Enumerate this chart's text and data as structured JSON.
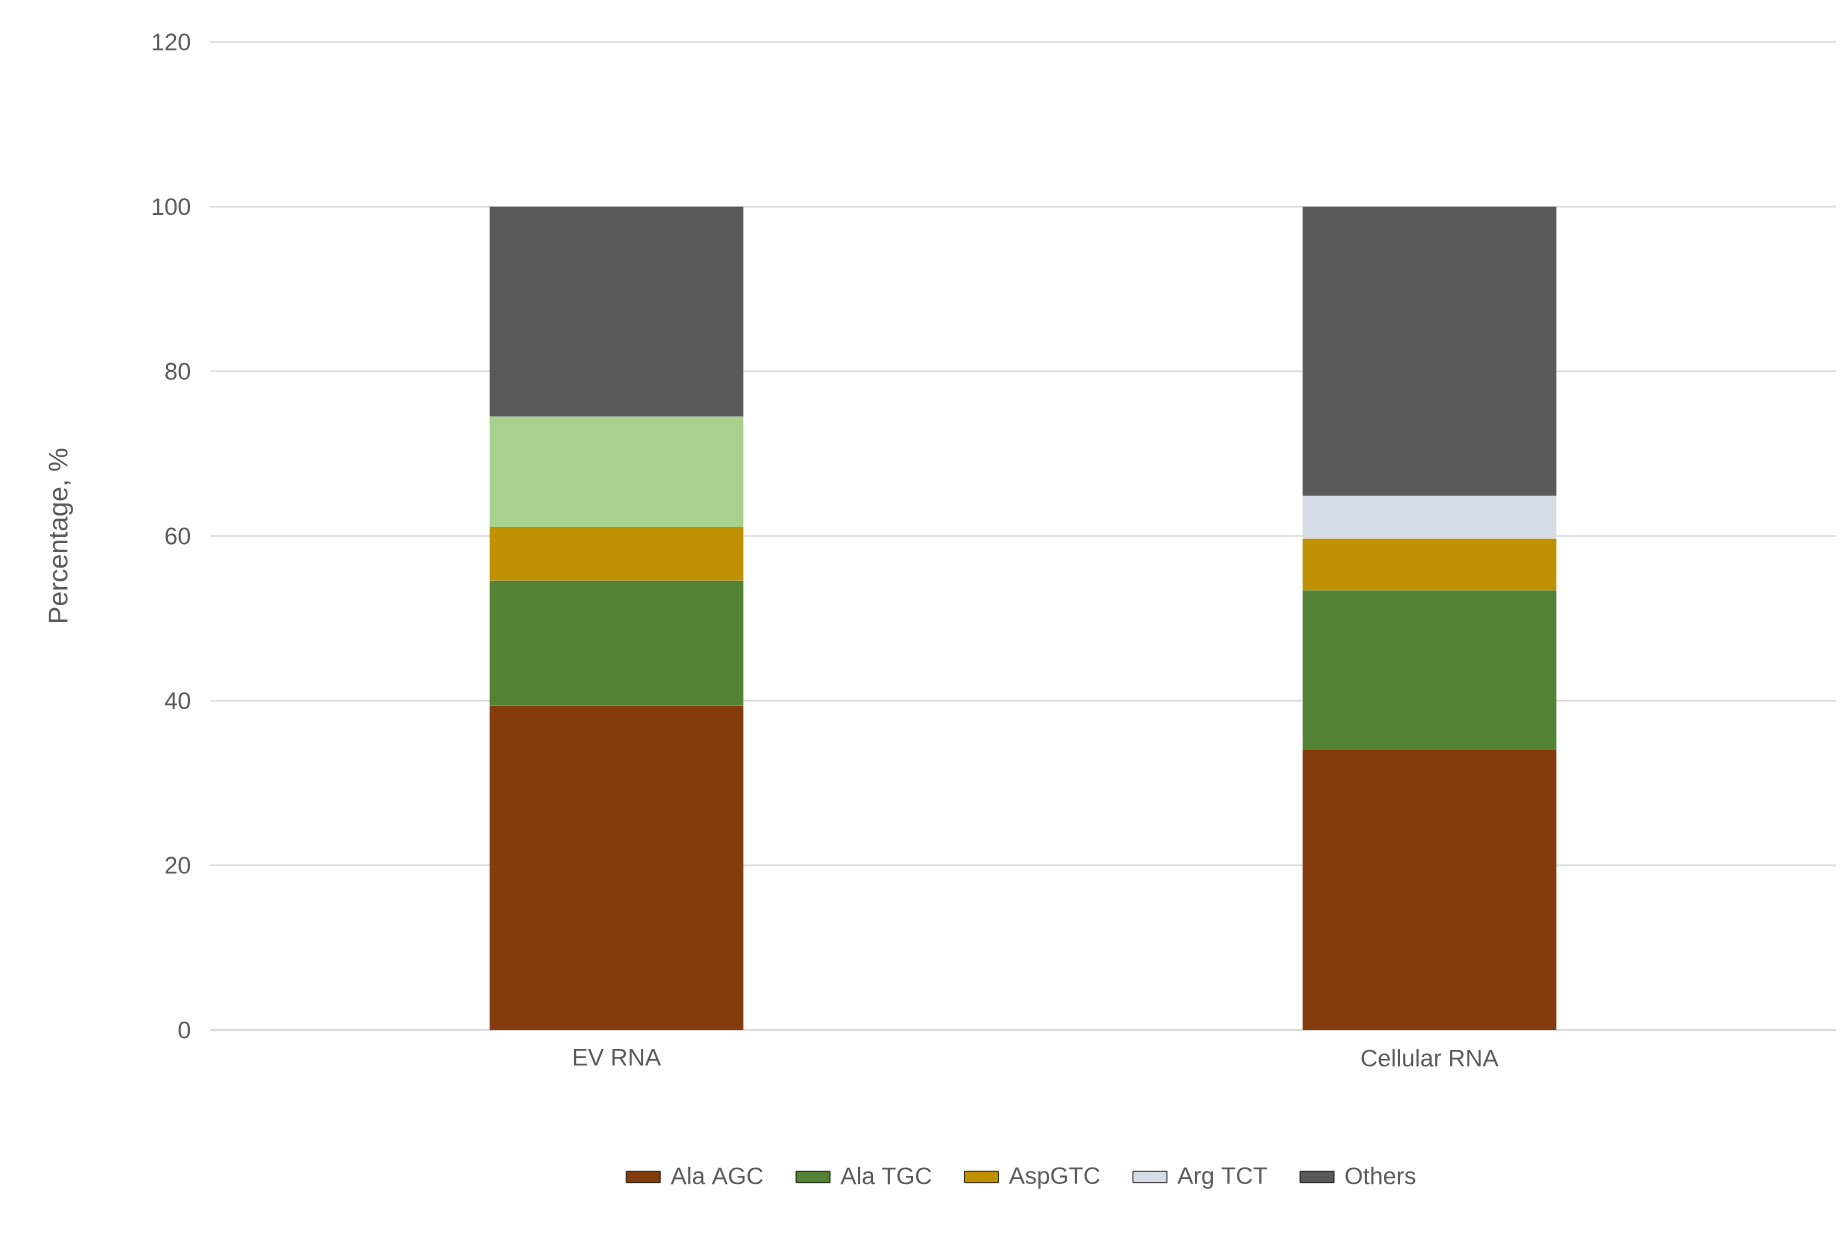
{
  "chart_data": {
    "type": "bar",
    "stacked": true,
    "ylabel": "Percentage, %",
    "categories": [
      "EV RNA",
      "Cellular RNA"
    ],
    "series": [
      {
        "name": "Ala AGC",
        "color": "#843c0c",
        "values": [
          39.4,
          34.0
        ]
      },
      {
        "name": "Ala TGC",
        "color": "#548235",
        "values": [
          15.2,
          19.4
        ]
      },
      {
        "name": "AspGTC",
        "color": "#bf9000",
        "values": [
          6.5,
          6.3
        ]
      },
      {
        "color": "#a9d18e",
        "values": [
          13.4,
          null
        ]
      },
      {
        "name": "Arg TCT",
        "color": "#d6dce5",
        "values": [
          null,
          5.2
        ]
      },
      {
        "name": "Others",
        "color": "#595959",
        "values": [
          25.5,
          35.1
        ]
      }
    ],
    "ylim": [
      0,
      120
    ],
    "yticks": [
      0,
      20,
      40,
      60,
      80,
      100,
      120
    ],
    "grid": "y",
    "legend": "bottom"
  }
}
